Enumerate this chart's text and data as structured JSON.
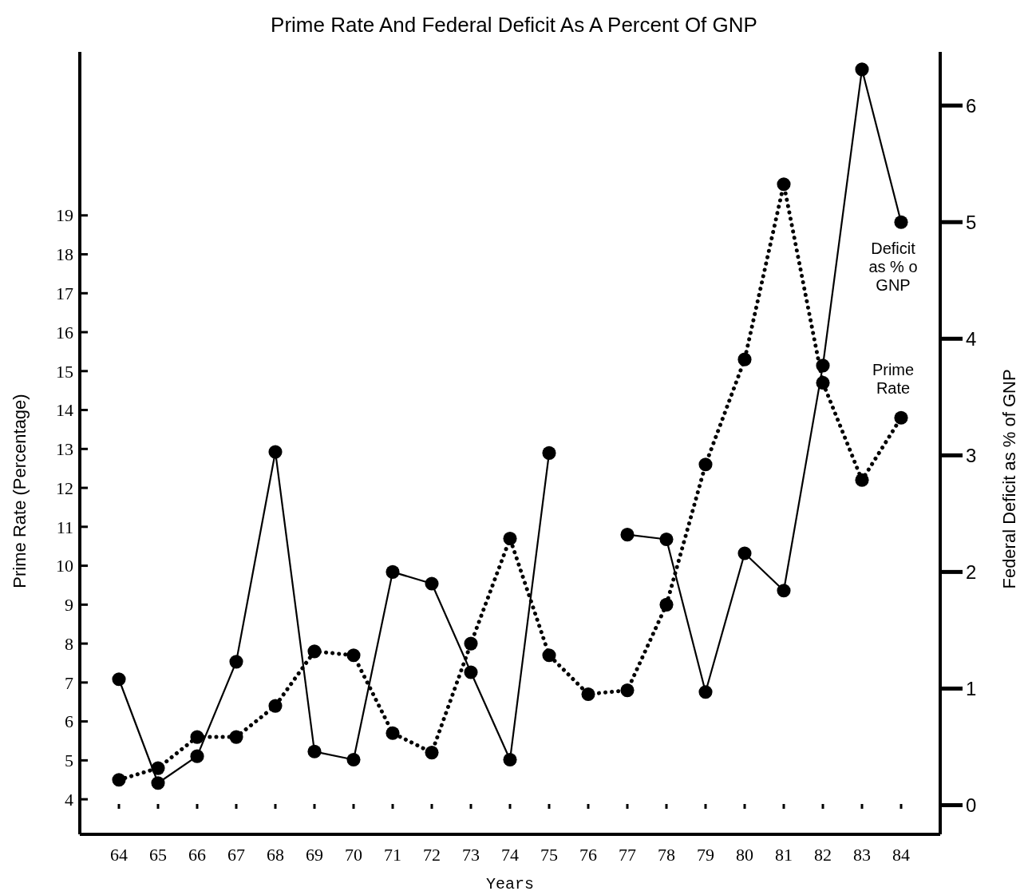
{
  "chart_data": {
    "type": "line",
    "title": "Prime Rate And Federal Deficit As A Percent Of GNP",
    "xlabel": "Years",
    "ylabel": "Prime Rate (Percentage)",
    "y2label": "Federal Deficit as % of GNP",
    "x": [
      64,
      65,
      66,
      67,
      68,
      69,
      70,
      71,
      72,
      73,
      74,
      75,
      76,
      77,
      78,
      79,
      80,
      81,
      82,
      83,
      84
    ],
    "xlim": [
      63,
      85
    ],
    "xticks": [
      64,
      65,
      66,
      67,
      68,
      69,
      70,
      71,
      72,
      73,
      74,
      75,
      76,
      77,
      78,
      79,
      80,
      81,
      82,
      83,
      84
    ],
    "ylim": [
      3.1,
      23.2
    ],
    "yticks": [
      4,
      5,
      6,
      7,
      8,
      9,
      10,
      11,
      12,
      13,
      14,
      15,
      16,
      17,
      18,
      19
    ],
    "y2lim": [
      -0.25,
      6.46
    ],
    "y2ticks": [
      0,
      1,
      2,
      3,
      4,
      5,
      6
    ],
    "marker": "circle",
    "grid": false,
    "legend": false,
    "series": [
      {
        "name": "Deficit as % o GNP",
        "color": "#000000",
        "axis": "y2",
        "line_style": "solid",
        "values": [
          1.08,
          0.19,
          0.42,
          1.23,
          3.03,
          0.46,
          0.39,
          2.0,
          1.9,
          1.14,
          0.39,
          3.02,
          null,
          2.32,
          2.28,
          0.97,
          2.16,
          1.84,
          3.77,
          6.31,
          5.0
        ]
      },
      {
        "name": "Prime Rate",
        "color": "#000000",
        "axis": "y",
        "line_style": "dotted",
        "values": [
          4.5,
          4.8,
          5.6,
          5.6,
          6.4,
          7.8,
          7.7,
          5.7,
          5.2,
          8.0,
          10.7,
          7.7,
          6.7,
          6.8,
          9.0,
          12.6,
          15.3,
          19.8,
          14.7,
          12.2,
          13.8
        ]
      }
    ]
  }
}
